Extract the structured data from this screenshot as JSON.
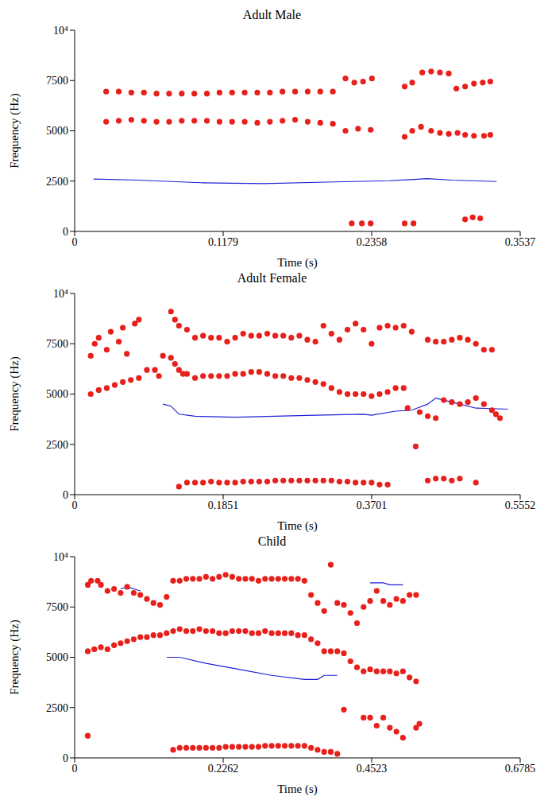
{
  "chart_data": [
    {
      "type": "scatter",
      "title": "Adult Male",
      "x_label": "Time (s)",
      "y_label": "Frequency (Hz)",
      "xlim": [
        0,
        0.3537
      ],
      "xticks": [
        0,
        0.1179,
        0.2358,
        0.3537
      ],
      "ylim": [
        0,
        10000
      ],
      "yticks": [
        0,
        2500,
        5000,
        7500,
        {
          "value": 10000,
          "label": "10⁴"
        }
      ],
      "grid": false,
      "series": [
        {
          "type": "scatter",
          "color": "#e8201c",
          "marker": "circle",
          "x": [
            0.025,
            0.035,
            0.045,
            0.055,
            0.065,
            0.075,
            0.085,
            0.095,
            0.105,
            0.115,
            0.125,
            0.135,
            0.145,
            0.155,
            0.165,
            0.175,
            0.185,
            0.195,
            0.205
          ],
          "values": [
            6950,
            6950,
            6900,
            6900,
            6850,
            6850,
            6850,
            6850,
            6850,
            6900,
            6900,
            6900,
            6900,
            6900,
            6950,
            6950,
            6950,
            6950,
            6950
          ]
        },
        {
          "type": "scatter",
          "color": "#e8201c",
          "marker": "circle",
          "x": [
            0.025,
            0.035,
            0.045,
            0.055,
            0.065,
            0.075,
            0.085,
            0.095,
            0.105,
            0.115,
            0.125,
            0.135,
            0.145,
            0.155,
            0.165,
            0.175,
            0.185,
            0.195,
            0.205
          ],
          "values": [
            5450,
            5500,
            5550,
            5500,
            5450,
            5450,
            5500,
            5500,
            5500,
            5450,
            5450,
            5450,
            5400,
            5450,
            5500,
            5550,
            5450,
            5400,
            5350
          ]
        },
        {
          "type": "scatter",
          "color": "#e8201c",
          "marker": "circle",
          "x": [
            0.215,
            0.222,
            0.229,
            0.236,
            0.262,
            0.268,
            0.276,
            0.283,
            0.29,
            0.297,
            0.303,
            0.31,
            0.317,
            0.324,
            0.33
          ],
          "values": [
            7600,
            7400,
            7450,
            7600,
            7200,
            7400,
            7900,
            7950,
            7900,
            7850,
            7100,
            7200,
            7350,
            7400,
            7450
          ]
        },
        {
          "type": "scatter",
          "color": "#e8201c",
          "marker": "circle",
          "x": [
            0.215,
            0.225,
            0.235,
            0.262,
            0.268,
            0.275,
            0.283,
            0.29,
            0.297,
            0.304,
            0.31,
            0.317,
            0.325,
            0.33
          ],
          "values": [
            5000,
            5100,
            5050,
            4700,
            5000,
            5200,
            5000,
            4900,
            4850,
            4900,
            4800,
            4750,
            4750,
            4800
          ]
        },
        {
          "type": "scatter",
          "color": "#e8201c",
          "marker": "circle",
          "x": [
            0.22,
            0.228,
            0.235,
            0.262,
            0.269,
            0.31,
            0.316,
            0.322
          ],
          "values": [
            400,
            400,
            400,
            400,
            400,
            600,
            700,
            650
          ]
        },
        {
          "type": "line",
          "color": "#1f1fd6",
          "line_style": "solid",
          "x": [
            0.015,
            0.05,
            0.1,
            0.15,
            0.2,
            0.25,
            0.28,
            0.3,
            0.335
          ],
          "values": [
            2600,
            2550,
            2420,
            2380,
            2450,
            2520,
            2620,
            2550,
            2480
          ]
        }
      ]
    },
    {
      "type": "scatter",
      "title": "Adult Female",
      "x_label": "Time (s)",
      "y_label": "Frequency (Hz)",
      "xlim": [
        0,
        0.5552
      ],
      "xticks": [
        0,
        0.1851,
        0.3701,
        0.5552
      ],
      "ylim": [
        0,
        10000
      ],
      "yticks": [
        0,
        2500,
        5000,
        7500,
        {
          "value": 10000,
          "label": "10⁴"
        }
      ],
      "grid": false,
      "series": [
        {
          "type": "scatter",
          "color": "#e8201c",
          "marker": "circle",
          "x": [
            0.02,
            0.025,
            0.03,
            0.04,
            0.045,
            0.055,
            0.06,
            0.065,
            0.075,
            0.08
          ],
          "values": [
            6900,
            7500,
            7800,
            7200,
            8100,
            7600,
            8300,
            7000,
            8500,
            8700
          ]
        },
        {
          "type": "scatter",
          "color": "#e8201c",
          "marker": "circle",
          "x": [
            0.02,
            0.03,
            0.04,
            0.05,
            0.06,
            0.07,
            0.08,
            0.09,
            0.1,
            0.105,
            0.11,
            0.12,
            0.125,
            0.13,
            0.135
          ],
          "values": [
            5000,
            5200,
            5300,
            5450,
            5600,
            5700,
            5800,
            6200,
            6200,
            5900,
            6900,
            6800,
            6500,
            6200,
            6000
          ]
        },
        {
          "type": "scatter",
          "color": "#e8201c",
          "marker": "circle",
          "x": [
            0.12,
            0.125,
            0.13,
            0.14,
            0.15,
            0.16,
            0.17,
            0.18,
            0.19,
            0.2,
            0.21,
            0.22,
            0.23,
            0.24,
            0.25,
            0.26,
            0.27,
            0.28,
            0.29,
            0.3,
            0.31,
            0.32,
            0.33,
            0.34,
            0.35,
            0.36,
            0.37,
            0.38,
            0.39,
            0.4,
            0.41,
            0.42,
            0.44,
            0.45,
            0.46,
            0.47,
            0.48,
            0.49,
            0.5,
            0.51,
            0.52
          ],
          "values": [
            9100,
            8700,
            8400,
            8200,
            7800,
            7900,
            7800,
            7800,
            7600,
            7800,
            8000,
            7900,
            7900,
            8000,
            7900,
            7900,
            7800,
            7900,
            7700,
            7600,
            8400,
            8000,
            7700,
            8200,
            8500,
            8200,
            7500,
            8300,
            8400,
            8300,
            8400,
            8100,
            7700,
            7600,
            7600,
            7700,
            7800,
            7700,
            7500,
            7200,
            7200
          ]
        },
        {
          "type": "scatter",
          "color": "#e8201c",
          "marker": "circle",
          "x": [
            0.14,
            0.15,
            0.16,
            0.17,
            0.18,
            0.19,
            0.2,
            0.21,
            0.22,
            0.23,
            0.24,
            0.25,
            0.26,
            0.27,
            0.28,
            0.29,
            0.3,
            0.31,
            0.32,
            0.33,
            0.34,
            0.35,
            0.36,
            0.37,
            0.38,
            0.39,
            0.4,
            0.41,
            0.415,
            0.425,
            0.43,
            0.44,
            0.45,
            0.46,
            0.47,
            0.48,
            0.49,
            0.5,
            0.51,
            0.52,
            0.525,
            0.53
          ],
          "values": [
            6000,
            5800,
            5900,
            5900,
            5900,
            5900,
            6000,
            6000,
            6100,
            6100,
            6000,
            5900,
            5900,
            5800,
            5800,
            5700,
            5600,
            5500,
            5300,
            5100,
            5000,
            5000,
            5000,
            4900,
            5000,
            5100,
            5300,
            5300,
            4300,
            2400,
            4100,
            3900,
            3800,
            4700,
            4600,
            4500,
            4600,
            4800,
            4500,
            4200,
            4000,
            3800
          ]
        },
        {
          "type": "scatter",
          "color": "#e8201c",
          "marker": "circle",
          "x": [
            0.13,
            0.14,
            0.15,
            0.16,
            0.17,
            0.18,
            0.19,
            0.2,
            0.21,
            0.22,
            0.23,
            0.24,
            0.25,
            0.26,
            0.27,
            0.28,
            0.29,
            0.3,
            0.31,
            0.32,
            0.33,
            0.34,
            0.35,
            0.36,
            0.37,
            0.38,
            0.39,
            0.44,
            0.45,
            0.46,
            0.47,
            0.48,
            0.5
          ],
          "values": [
            400,
            600,
            600,
            600,
            650,
            600,
            600,
            600,
            650,
            650,
            650,
            650,
            700,
            700,
            700,
            700,
            700,
            700,
            700,
            700,
            650,
            650,
            600,
            600,
            600,
            500,
            500,
            700,
            800,
            800,
            700,
            800,
            600
          ]
        },
        {
          "type": "line",
          "color": "#1f1fd6",
          "line_style": "solid",
          "x": [
            0.11,
            0.12,
            0.13,
            0.15,
            0.2,
            0.25,
            0.3,
            0.36,
            0.37,
            0.4,
            0.42,
            0.44,
            0.45,
            0.47,
            0.5,
            0.54
          ],
          "values": [
            4500,
            4400,
            4000,
            3900,
            3850,
            3900,
            3950,
            4000,
            3950,
            4150,
            4200,
            4500,
            4800,
            4600,
            4300,
            4250
          ]
        }
      ]
    },
    {
      "type": "scatter",
      "title": "Child",
      "x_label": "Time (s)",
      "y_label": "Frequency (Hz)",
      "xlim": [
        0,
        0.6785
      ],
      "xticks": [
        0,
        0.2262,
        0.4523,
        0.6785
      ],
      "ylim": [
        0,
        10000
      ],
      "yticks": [
        0,
        2500,
        5000,
        7500,
        {
          "value": 10000,
          "label": "10⁴"
        }
      ],
      "grid": false,
      "series": [
        {
          "type": "scatter",
          "color": "#e8201c",
          "marker": "circle",
          "x": [
            0.02,
            0.025,
            0.035,
            0.04,
            0.05,
            0.06,
            0.07,
            0.08,
            0.09,
            0.1,
            0.11,
            0.12,
            0.13,
            0.14,
            0.15,
            0.16,
            0.17,
            0.18,
            0.19,
            0.2,
            0.21,
            0.22,
            0.23,
            0.24,
            0.25,
            0.26,
            0.27,
            0.28,
            0.29,
            0.3,
            0.31,
            0.32,
            0.33,
            0.34,
            0.35,
            0.36,
            0.37,
            0.38,
            0.39,
            0.4,
            0.41,
            0.42,
            0.43,
            0.44,
            0.45,
            0.46,
            0.47,
            0.48,
            0.49,
            0.5,
            0.51,
            0.52
          ],
          "values": [
            8600,
            8800,
            8800,
            8600,
            8300,
            8400,
            8200,
            8500,
            8200,
            8100,
            7900,
            7700,
            7600,
            8000,
            8800,
            8800,
            8900,
            8900,
            8900,
            9000,
            8900,
            9000,
            9100,
            9000,
            8900,
            8900,
            8900,
            8800,
            8900,
            8900,
            8900,
            8900,
            8900,
            8900,
            8800,
            8100,
            7700,
            7300,
            9600,
            7700,
            7600,
            7200,
            6700,
            7500,
            7800,
            8300,
            7800,
            7600,
            7900,
            7800,
            8100,
            8100
          ]
        },
        {
          "type": "scatter",
          "color": "#e8201c",
          "marker": "circle",
          "x": [
            0.02,
            0.03,
            0.04,
            0.05,
            0.06,
            0.07,
            0.08,
            0.09,
            0.1,
            0.11,
            0.12,
            0.13,
            0.14,
            0.15,
            0.16,
            0.17,
            0.18,
            0.19,
            0.2,
            0.21,
            0.22,
            0.23,
            0.24,
            0.25,
            0.26,
            0.27,
            0.28,
            0.29,
            0.3,
            0.31,
            0.32,
            0.33,
            0.34,
            0.35,
            0.36,
            0.37,
            0.38,
            0.39,
            0.4,
            0.41,
            0.42,
            0.43,
            0.44,
            0.45,
            0.46,
            0.47,
            0.48,
            0.49,
            0.5,
            0.51,
            0.52
          ],
          "values": [
            5300,
            5400,
            5500,
            5400,
            5600,
            5700,
            5800,
            5900,
            6000,
            6000,
            6100,
            6100,
            6200,
            6300,
            6400,
            6300,
            6300,
            6400,
            6300,
            6300,
            6200,
            6200,
            6300,
            6300,
            6300,
            6200,
            6200,
            6300,
            6200,
            6200,
            6200,
            6200,
            6100,
            6100,
            5900,
            5700,
            5300,
            5300,
            5300,
            5200,
            4800,
            4500,
            4300,
            4400,
            4300,
            4300,
            4300,
            4200,
            4300,
            4000,
            3800
          ]
        },
        {
          "type": "scatter",
          "color": "#e8201c",
          "marker": "circle",
          "x": [
            0.02,
            0.41,
            0.44,
            0.45,
            0.46,
            0.47,
            0.48,
            0.49,
            0.5,
            0.52,
            0.525
          ],
          "values": [
            1100,
            2400,
            2000,
            2000,
            1600,
            2000,
            1500,
            1300,
            1000,
            1500,
            1700
          ]
        },
        {
          "type": "scatter",
          "color": "#e8201c",
          "marker": "circle",
          "x": [
            0.15,
            0.16,
            0.17,
            0.18,
            0.19,
            0.2,
            0.21,
            0.22,
            0.23,
            0.24,
            0.25,
            0.26,
            0.27,
            0.28,
            0.29,
            0.3,
            0.31,
            0.32,
            0.33,
            0.34,
            0.35,
            0.36,
            0.37,
            0.38,
            0.39,
            0.4
          ],
          "values": [
            400,
            500,
            500,
            500,
            500,
            500,
            500,
            500,
            550,
            550,
            550,
            550,
            550,
            550,
            600,
            600,
            600,
            600,
            600,
            600,
            600,
            500,
            400,
            300,
            300,
            200
          ]
        },
        {
          "type": "line",
          "color": "#1f1fd6",
          "line_style": "solid",
          "x": [
            0.07,
            0.08,
            0.09,
            0.1,
            0.12,
            0.14,
            0.16,
            0.2,
            0.25,
            0.3,
            0.35,
            0.37,
            0.38,
            0.4,
            0.43,
            0.45,
            0.47,
            0.48,
            0.5
          ],
          "values": [
            8400,
            8500,
            8400,
            8300,
            null,
            5000,
            5000,
            4700,
            4400,
            4100,
            3900,
            3900,
            4100,
            4100,
            null,
            8700,
            8700,
            8600,
            8600
          ]
        }
      ]
    }
  ]
}
